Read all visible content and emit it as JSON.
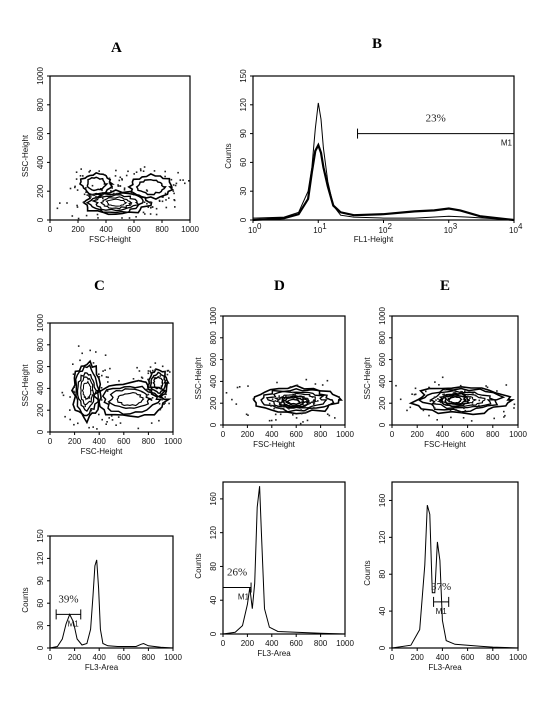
{
  "panel_letters": {
    "A": "A",
    "B": "B",
    "C": "C",
    "D": "D",
    "E": "E"
  },
  "chart_data": [
    {
      "id": "A",
      "type": "contour",
      "xlabel": "FSC-Height",
      "ylabel": "SSC-Height",
      "xlim": [
        0,
        1000
      ],
      "ylim": [
        0,
        1000
      ],
      "xticks": [
        "0",
        "200",
        "400",
        "600",
        "800",
        "1000"
      ],
      "yticks": [
        "0",
        "200",
        "400",
        "600",
        "800",
        "1000"
      ],
      "populations": [
        {
          "cx": 470,
          "cy": 120,
          "rx": 230,
          "ry": 80,
          "levels": 5
        },
        {
          "cx": 330,
          "cy": 250,
          "rx": 110,
          "ry": 70,
          "levels": 2
        },
        {
          "cx": 720,
          "cy": 230,
          "rx": 150,
          "ry": 80,
          "levels": 2
        }
      ]
    },
    {
      "id": "B",
      "type": "histogram",
      "xlabel": "FL1-Height",
      "ylabel": "Counts",
      "xscale": "log",
      "xlim": [
        1,
        10000
      ],
      "ylim": [
        0,
        150
      ],
      "xticks": [
        "10^0",
        "10^1",
        "10^2",
        "10^3",
        "10^4"
      ],
      "yticks": [
        "0",
        "30",
        "60",
        "90",
        "120",
        "150"
      ],
      "series": [
        {
          "x": [
            1,
            3,
            5,
            7,
            8,
            9,
            10,
            11,
            12,
            14,
            17,
            22,
            35,
            100,
            300,
            1000,
            2000,
            10000
          ],
          "y": [
            2,
            3,
            8,
            30,
            55,
            95,
            122,
            105,
            75,
            40,
            15,
            5,
            3,
            2,
            2,
            4,
            3,
            0
          ]
        },
        {
          "x": [
            1,
            3,
            5,
            7,
            8,
            9,
            10,
            11,
            12,
            14,
            17,
            22,
            35,
            100,
            300,
            600,
            1000,
            1500,
            3000,
            10000
          ],
          "y": [
            0,
            2,
            6,
            22,
            50,
            72,
            78,
            70,
            55,
            35,
            15,
            8,
            5,
            6,
            9,
            10,
            12,
            10,
            4,
            0
          ]
        }
      ],
      "gate": {
        "label": "M1",
        "x": [
          40,
          10000
        ],
        "y": 90,
        "percent": "23%"
      }
    },
    {
      "id": "C",
      "type": "contour",
      "xlabel": "FSC-Height",
      "ylabel": "SSC-Height",
      "xlim": [
        0,
        1000
      ],
      "ylim": [
        0,
        1000
      ],
      "xticks": [
        "0",
        "200",
        "400",
        "600",
        "800",
        "1000"
      ],
      "yticks": [
        "0",
        "200",
        "400",
        "600",
        "800",
        "1000"
      ],
      "populations": [
        {
          "cx": 300,
          "cy": 380,
          "rx": 110,
          "ry": 260,
          "levels": 5
        },
        {
          "cx": 650,
          "cy": 300,
          "rx": 280,
          "ry": 160,
          "levels": 4
        },
        {
          "cx": 880,
          "cy": 450,
          "rx": 80,
          "ry": 120,
          "levels": 3
        }
      ]
    },
    {
      "id": "D",
      "type": "contour",
      "xlabel": "FSC-Height",
      "ylabel": "SSC-Height",
      "xlim": [
        0,
        1000
      ],
      "ylim": [
        0,
        1000
      ],
      "xticks": [
        "0",
        "200",
        "400",
        "600",
        "800",
        "1000"
      ],
      "yticks": [
        "0",
        "200",
        "400",
        "600",
        "800",
        "1000"
      ],
      "populations": [
        {
          "cx": 600,
          "cy": 230,
          "rx": 340,
          "ry": 120,
          "levels": 5
        },
        {
          "cx": 580,
          "cy": 210,
          "rx": 110,
          "ry": 55,
          "levels": 3
        }
      ]
    },
    {
      "id": "E",
      "type": "contour",
      "xlabel": "FSC-Height",
      "ylabel": "SSC-Height",
      "xlim": [
        0,
        1000
      ],
      "ylim": [
        0,
        1000
      ],
      "xticks": [
        "0",
        "200",
        "400",
        "600",
        "800",
        "1000"
      ],
      "yticks": [
        "0",
        "200",
        "400",
        "600",
        "800",
        "1000"
      ],
      "populations": [
        {
          "cx": 550,
          "cy": 230,
          "rx": 370,
          "ry": 120,
          "levels": 5
        },
        {
          "cx": 500,
          "cy": 230,
          "rx": 110,
          "ry": 60,
          "levels": 3
        }
      ]
    },
    {
      "id": "C2",
      "type": "histogram",
      "xlabel": "FL3-Area",
      "ylabel": "Counts",
      "xlim": [
        0,
        1000
      ],
      "ylim": [
        0,
        150
      ],
      "xticks": [
        "0",
        "200",
        "400",
        "600",
        "800",
        "1000"
      ],
      "yticks": [
        "0",
        "30",
        "60",
        "90",
        "120",
        "150"
      ],
      "series": [
        {
          "x": [
            0,
            60,
            100,
            130,
            160,
            190,
            220,
            260,
            300,
            330,
            350,
            365,
            380,
            395,
            410,
            430,
            470,
            550,
            700,
            740,
            760,
            800,
            900,
            1000
          ],
          "y": [
            0,
            2,
            12,
            32,
            45,
            35,
            12,
            4,
            6,
            25,
            70,
            110,
            118,
            80,
            25,
            6,
            3,
            2,
            2,
            5,
            6,
            3,
            1,
            0
          ]
        }
      ],
      "gate": {
        "label": "M1",
        "x": [
          50,
          250
        ],
        "y": 45,
        "percent": "39%"
      }
    },
    {
      "id": "D2",
      "type": "histogram",
      "xlabel": "FL3-Area",
      "ylabel": "Counts",
      "xlim": [
        0,
        1000
      ],
      "ylim": [
        0,
        180
      ],
      "xticks": [
        "0",
        "200",
        "400",
        "600",
        "800",
        "1000"
      ],
      "yticks": [
        "0",
        "40",
        "80",
        "120",
        "160"
      ],
      "series": [
        {
          "x": [
            0,
            100,
            160,
            200,
            220,
            240,
            260,
            280,
            300,
            315,
            340,
            380,
            450,
            600,
            800,
            1000
          ],
          "y": [
            0,
            2,
            10,
            35,
            55,
            30,
            60,
            150,
            175,
            120,
            30,
            8,
            3,
            2,
            1,
            0
          ]
        }
      ],
      "gate": {
        "label": "M1",
        "x": [
          0,
          230
        ],
        "y": 55,
        "percent": "26%"
      }
    },
    {
      "id": "E2",
      "type": "histogram",
      "xlabel": "FL3-Area",
      "ylabel": "Counts",
      "xlim": [
        0,
        1000
      ],
      "ylim": [
        0,
        180
      ],
      "xticks": [
        "0",
        "200",
        "400",
        "600",
        "800",
        "1000"
      ],
      "yticks": [
        "0",
        "40",
        "80",
        "120",
        "160"
      ],
      "series": [
        {
          "x": [
            0,
            150,
            220,
            260,
            280,
            300,
            320,
            340,
            360,
            380,
            400,
            430,
            500,
            600,
            700,
            800,
            1000
          ],
          "y": [
            0,
            3,
            20,
            90,
            155,
            145,
            60,
            60,
            115,
            95,
            30,
            8,
            4,
            3,
            2,
            1,
            0
          ]
        }
      ],
      "gate": {
        "label": "M1",
        "x": [
          330,
          450
        ],
        "y": 50,
        "percent": "37%"
      }
    }
  ]
}
